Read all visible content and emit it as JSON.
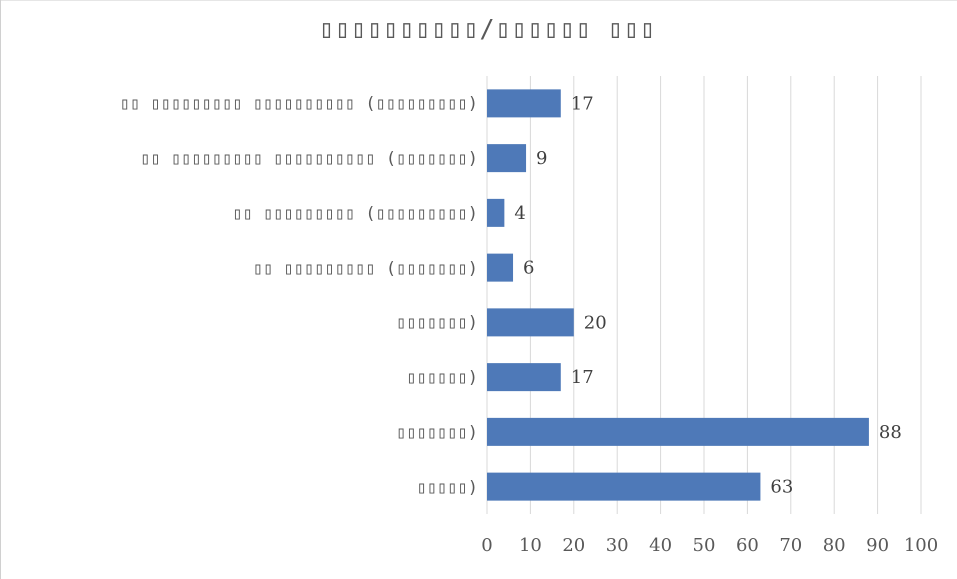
{
  "chart_data": {
    "type": "bar",
    "orientation": "horizontal",
    "title": "▯▯▯▯▯▯▯▯▯▯/▯▯▯▯▯▯ ▯▯▯",
    "categories": [
      "▯▯ ▯▯▯▯▯▯▯▯▯ ▯▯▯▯▯▯▯▯▯▯ (▯▯▯▯▯▯▯▯▯)",
      "▯▯ ▯▯▯▯▯▯▯▯▯ ▯▯▯▯▯▯▯▯▯▯ (▯▯▯▯▯▯▯)",
      "▯▯ ▯▯▯▯▯▯▯▯▯ (▯▯▯▯▯▯▯▯▯)",
      "▯▯ ▯▯▯▯▯▯▯▯▯ (▯▯▯▯▯▯▯)",
      "▯▯▯▯▯▯▯)",
      "▯▯▯▯▯▯)",
      "▯▯▯▯▯▯▯)",
      "▯▯▯▯▯)"
    ],
    "values": [
      17,
      9,
      4,
      6,
      20,
      17,
      88,
      63
    ],
    "xlim": [
      0,
      100
    ],
    "xticks": [
      "0",
      "10",
      "20",
      "30",
      "40",
      "50",
      "60",
      "70",
      "80",
      "90",
      "100"
    ],
    "grid": true,
    "legend": "none",
    "bar_color": "#4e79b8",
    "grid_color": "#d9d9d9"
  }
}
